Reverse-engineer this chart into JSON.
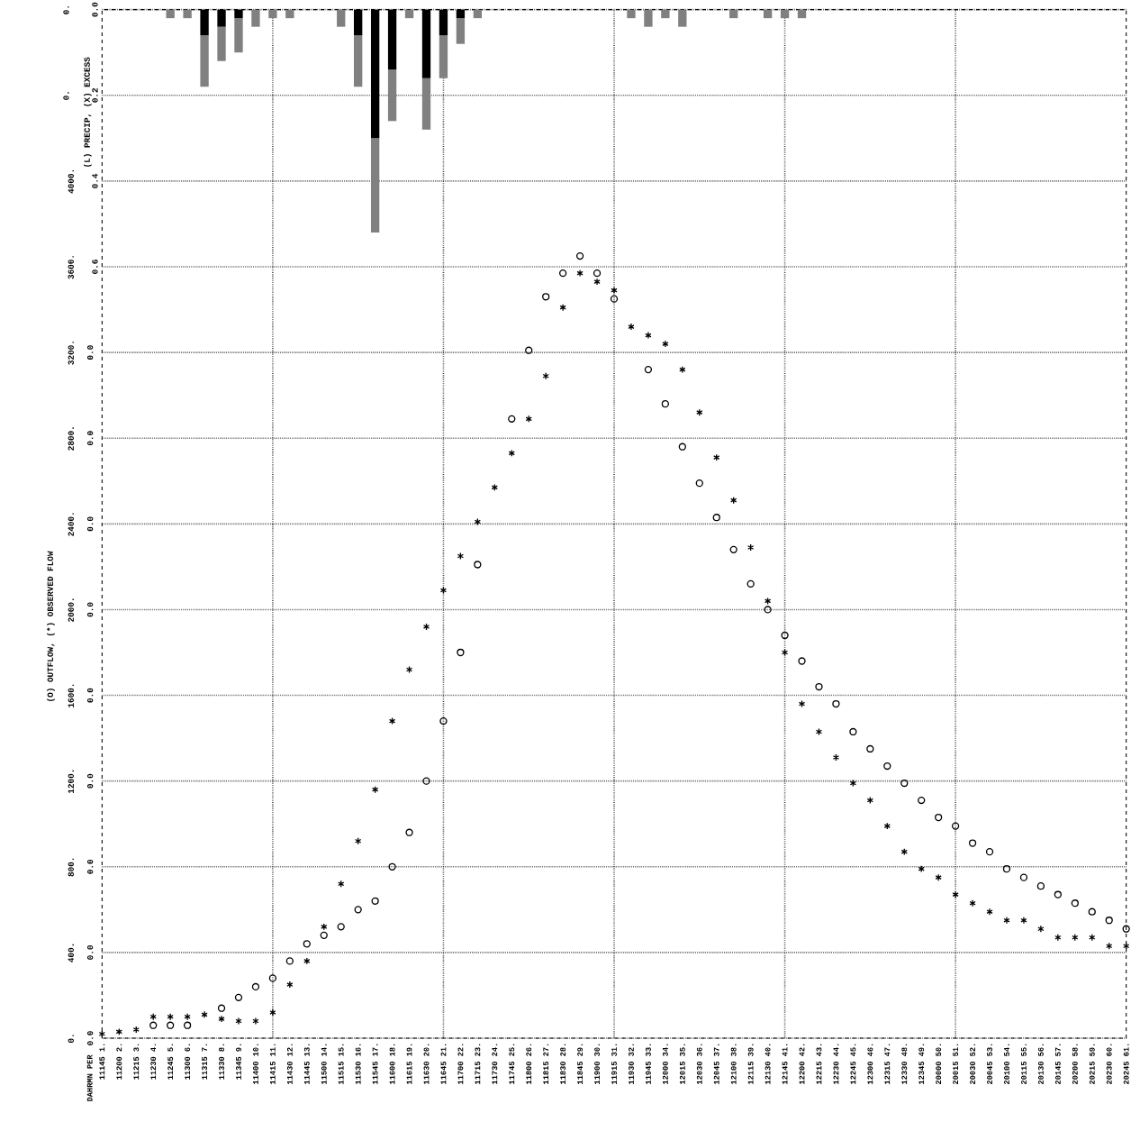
{
  "chart_data": {
    "type": "scatter",
    "annotations": [
      "DAHRMN PER",
      "(L) PRECIP, (X) EXCESS",
      "0.",
      "0.",
      "0.0",
      "0.0",
      "0.0",
      "0.0",
      "0.0",
      "0.0",
      "0.0",
      "0.0",
      "0.0"
    ],
    "ylabel": "(O) OUTFLOW, (*) OBSERVED FLOW",
    "categories": [
      "11145 1.",
      "11200 2.",
      "11215 3.",
      "11230 4.",
      "11245 5.",
      "11300 6.",
      "11315 7.",
      "11330 8.",
      "11345 9.",
      "11400 10.",
      "11415 11.",
      "11430 12.",
      "11445 13.",
      "11500 14.",
      "11515 15.",
      "11530 16.",
      "11545 17.",
      "11600 18.",
      "11615 19.",
      "11630 20.",
      "11645 21.",
      "11700 22.",
      "11715 23.",
      "11730 24.",
      "11745 25.",
      "11800 26.",
      "11815 27.",
      "11830 28.",
      "11845 29.",
      "11900 30.",
      "11915 31.",
      "11930 32.",
      "11945 33.",
      "12000 34.",
      "12015 35.",
      "12030 36.",
      "12045 37.",
      "12100 38.",
      "12115 39.",
      "12130 40.",
      "12145 41.",
      "12200 42.",
      "12215 43.",
      "12230 44.",
      "12245 45.",
      "12300 46.",
      "12315 47.",
      "12330 48.",
      "12345 49.",
      "20000 50.",
      "20015 51.",
      "20030 52.",
      "20045 53.",
      "20100 54.",
      "20115 55.",
      "20130 56.",
      "20145 57.",
      "20200 58.",
      "20215 59.",
      "20230 60.",
      "20245 61."
    ],
    "ylim": [
      0,
      4800
    ],
    "yticks": [
      {
        "value": 0,
        "label": "0."
      },
      {
        "value": 400,
        "label": "400."
      },
      {
        "value": 800,
        "label": "800."
      },
      {
        "value": 1200,
        "label": "1200."
      },
      {
        "value": 1600,
        "label": "1600."
      },
      {
        "value": 2000,
        "label": "2000."
      },
      {
        "value": 2400,
        "label": "2400."
      },
      {
        "value": 2800,
        "label": "2800."
      },
      {
        "value": 3200,
        "label": "3200."
      },
      {
        "value": 3600,
        "label": "3600."
      },
      {
        "value": 4000,
        "label": "4000."
      },
      {
        "value": 4400,
        "label": null
      },
      {
        "value": 4800,
        "label": null
      }
    ],
    "y2lim": [
      2.4,
      0
    ],
    "y2ticks": [
      {
        "value": 0,
        "label": "0.0"
      },
      {
        "value": 0.2,
        "label": "0.2"
      },
      {
        "value": 0.4,
        "label": "0.4"
      },
      {
        "value": 0.6,
        "label": "0.6"
      },
      {
        "value": 0.8,
        "label": null
      },
      {
        "value": 1.0,
        "label": null
      },
      {
        "value": 1.2,
        "label": null
      },
      {
        "value": 1.4,
        "label": null
      },
      {
        "value": 1.6,
        "label": null
      },
      {
        "value": 1.8,
        "label": null
      },
      {
        "value": 2.0,
        "label": null
      },
      {
        "value": 2.2,
        "label": null
      },
      {
        "value": 2.4,
        "label": null
      }
    ],
    "grid": true,
    "stacked": true,
    "series": [
      {
        "marker": "circle",
        "color": "#000000",
        "values": [
          null,
          null,
          null,
          60,
          60,
          60,
          null,
          140,
          190,
          240,
          280,
          360,
          440,
          480,
          520,
          600,
          640,
          800,
          960,
          1200,
          1480,
          1800,
          2210,
          null,
          2890,
          3210,
          3460,
          3570,
          3650,
          3570,
          3450,
          null,
          3120,
          2960,
          2760,
          2590,
          2430,
          2280,
          2120,
          2000,
          1880,
          1760,
          1640,
          1560,
          1430,
          1350,
          1270,
          1190,
          1110,
          1030,
          990,
          910,
          870,
          790,
          750,
          710,
          670,
          630,
          590,
          550,
          510
        ]
      },
      {
        "marker": "cross",
        "color": "#000000",
        "values": [
          20,
          30,
          40,
          100,
          100,
          100,
          110,
          90,
          80,
          80,
          120,
          250,
          360,
          520,
          720,
          920,
          1160,
          1480,
          1720,
          1920,
          2090,
          2250,
          2410,
          2570,
          2730,
          2890,
          3090,
          3410,
          3570,
          3530,
          3490,
          3320,
          3280,
          3240,
          3120,
          2920,
          2710,
          2510,
          2290,
          2040,
          1800,
          1560,
          1430,
          1310,
          1190,
          1110,
          990,
          870,
          790,
          750,
          670,
          630,
          590,
          550,
          550,
          510,
          470,
          470,
          470,
          430,
          430
        ]
      },
      {
        "type": "bar",
        "axis": "y2",
        "color": "#000000",
        "values": [
          null,
          null,
          null,
          null,
          null,
          null,
          0.06,
          0.04,
          0.02,
          null,
          null,
          null,
          null,
          null,
          null,
          0.06,
          0.3,
          0.14,
          null,
          0.16,
          0.06,
          0.02,
          null,
          null,
          null,
          null,
          null,
          null,
          null,
          null,
          null,
          null,
          null,
          null,
          null,
          null,
          null,
          null,
          null,
          null,
          null,
          null,
          null,
          null,
          null,
          null,
          null,
          null,
          null,
          null,
          null,
          null,
          null,
          null,
          null,
          null,
          null,
          null,
          null,
          null,
          null
        ]
      },
      {
        "type": "bar",
        "axis": "y2",
        "color": "#808080",
        "values": [
          null,
          null,
          null,
          null,
          0.02,
          0.02,
          0.12,
          0.08,
          0.08,
          0.04,
          0.02,
          0.02,
          null,
          null,
          0.04,
          0.12,
          0.22,
          0.12,
          0.02,
          0.12,
          0.1,
          0.06,
          0.02,
          null,
          null,
          null,
          null,
          null,
          null,
          null,
          null,
          0.02,
          0.04,
          0.02,
          0.04,
          null,
          null,
          0.02,
          null,
          0.02,
          0.02,
          0.02,
          null,
          null,
          null,
          null,
          null,
          null,
          null,
          null,
          null,
          null,
          null,
          null,
          null,
          null,
          null,
          null,
          null,
          null,
          null
        ]
      }
    ]
  }
}
